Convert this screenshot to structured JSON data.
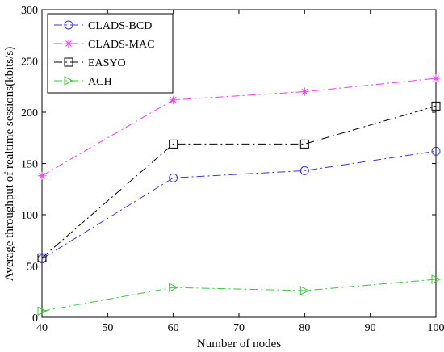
{
  "chart_data": {
    "type": "line",
    "title": "",
    "xlabel": "Number of nodes",
    "ylabel": "Average throughput of realtime sessions(kbits/s)",
    "xlim": [
      40,
      100
    ],
    "ylim": [
      0,
      300
    ],
    "xticks": [
      40,
      50,
      60,
      70,
      80,
      90,
      100
    ],
    "yticks": [
      0,
      50,
      100,
      150,
      200,
      250,
      300
    ],
    "grid": false,
    "legend_position": "top-left",
    "x": [
      40,
      60,
      80,
      100
    ],
    "series": [
      {
        "name": "CLADS-BCD",
        "values": [
          57,
          136,
          143,
          162
        ],
        "color": "#3333ff",
        "marker": "circle",
        "dash": "dash-dot"
      },
      {
        "name": "CLADS-MAC",
        "values": [
          138,
          212,
          220,
          233
        ],
        "color": "#ff33ff",
        "marker": "star",
        "dash": "dash-dot"
      },
      {
        "name": "EASYO",
        "values": [
          58,
          169,
          169,
          206
        ],
        "color": "#000000",
        "marker": "square",
        "dash": "dash-dot"
      },
      {
        "name": "ACH",
        "values": [
          6,
          29,
          26,
          37
        ],
        "color": "#33cc33",
        "marker": "triangle-right",
        "dash": "dash-dot"
      }
    ]
  }
}
